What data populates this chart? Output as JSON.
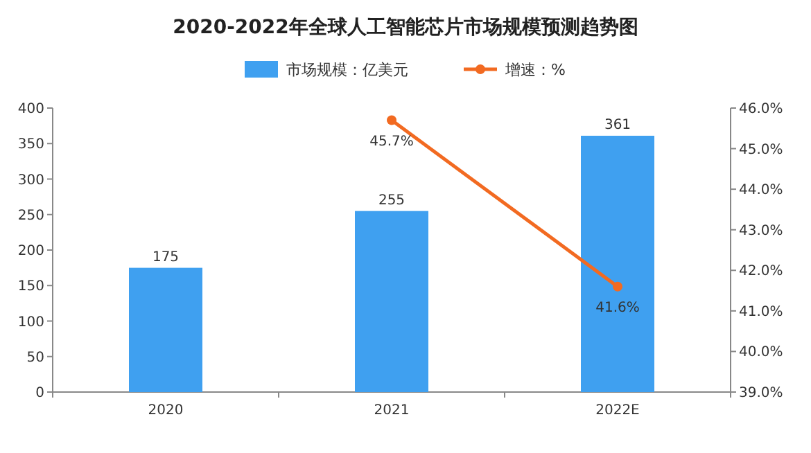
{
  "chart_data": {
    "type": "bar",
    "title": "2020-2022年全球人工智能芯片市场规模预测趋势图",
    "categories": [
      "2020",
      "2021",
      "2022E"
    ],
    "series": [
      {
        "name": "市场规模：亿美元",
        "color": "#3fa0f0",
        "values": [
          175,
          255,
          361
        ],
        "value_labels": [
          "175",
          "255",
          "361"
        ]
      },
      {
        "name": "增速：%",
        "type": "line",
        "axis": "y2",
        "color": "#f26a21",
        "marker": "circle",
        "values": [
          null,
          45.7,
          41.6
        ],
        "value_labels": [
          null,
          "45.7%",
          "41.6%"
        ]
      }
    ],
    "ylim": [
      0,
      400
    ],
    "yticks": [
      0,
      50,
      100,
      150,
      200,
      250,
      300,
      350,
      400
    ],
    "y2lim": [
      39,
      46
    ],
    "y2ticks": [
      {
        "value": 39,
        "label": "39.0%"
      },
      {
        "value": 40,
        "label": "40.0%"
      },
      {
        "value": 41,
        "label": "41.0%"
      },
      {
        "value": 42,
        "label": "42.0%"
      },
      {
        "value": 43,
        "label": "43.0%"
      },
      {
        "value": 44,
        "label": "44.0%"
      },
      {
        "value": 45,
        "label": "45.0%"
      },
      {
        "value": 46,
        "label": "46.0%"
      }
    ],
    "legend": "top",
    "grid": false
  }
}
